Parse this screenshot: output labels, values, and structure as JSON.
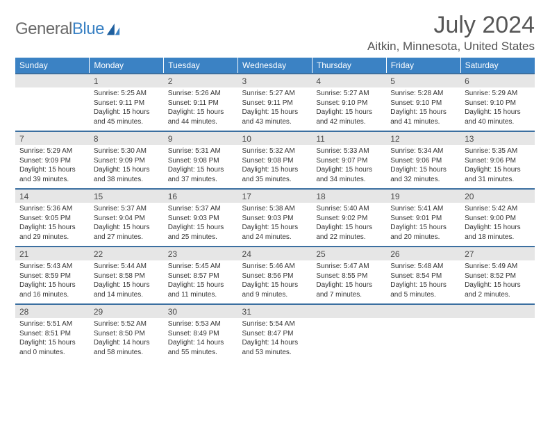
{
  "branding": {
    "logo_text_1": "General",
    "logo_text_2": "Blue",
    "logo_color_gray": "#6a6a6a",
    "logo_color_blue": "#3b82c4"
  },
  "header": {
    "month_title": "July 2024",
    "location": "Aitkin, Minnesota, United States"
  },
  "theme": {
    "header_bg": "#3b82c4",
    "header_text": "#ffffff",
    "daynum_bg": "#e6e6e6",
    "border_color": "#3b6fa0",
    "body_text": "#333333"
  },
  "weekdays": [
    "Sunday",
    "Monday",
    "Tuesday",
    "Wednesday",
    "Thursday",
    "Friday",
    "Saturday"
  ],
  "weeks": [
    [
      null,
      {
        "n": "1",
        "sr": "5:25 AM",
        "ss": "9:11 PM",
        "dl": "15 hours and 45 minutes."
      },
      {
        "n": "2",
        "sr": "5:26 AM",
        "ss": "9:11 PM",
        "dl": "15 hours and 44 minutes."
      },
      {
        "n": "3",
        "sr": "5:27 AM",
        "ss": "9:11 PM",
        "dl": "15 hours and 43 minutes."
      },
      {
        "n": "4",
        "sr": "5:27 AM",
        "ss": "9:10 PM",
        "dl": "15 hours and 42 minutes."
      },
      {
        "n": "5",
        "sr": "5:28 AM",
        "ss": "9:10 PM",
        "dl": "15 hours and 41 minutes."
      },
      {
        "n": "6",
        "sr": "5:29 AM",
        "ss": "9:10 PM",
        "dl": "15 hours and 40 minutes."
      }
    ],
    [
      {
        "n": "7",
        "sr": "5:29 AM",
        "ss": "9:09 PM",
        "dl": "15 hours and 39 minutes."
      },
      {
        "n": "8",
        "sr": "5:30 AM",
        "ss": "9:09 PM",
        "dl": "15 hours and 38 minutes."
      },
      {
        "n": "9",
        "sr": "5:31 AM",
        "ss": "9:08 PM",
        "dl": "15 hours and 37 minutes."
      },
      {
        "n": "10",
        "sr": "5:32 AM",
        "ss": "9:08 PM",
        "dl": "15 hours and 35 minutes."
      },
      {
        "n": "11",
        "sr": "5:33 AM",
        "ss": "9:07 PM",
        "dl": "15 hours and 34 minutes."
      },
      {
        "n": "12",
        "sr": "5:34 AM",
        "ss": "9:06 PM",
        "dl": "15 hours and 32 minutes."
      },
      {
        "n": "13",
        "sr": "5:35 AM",
        "ss": "9:06 PM",
        "dl": "15 hours and 31 minutes."
      }
    ],
    [
      {
        "n": "14",
        "sr": "5:36 AM",
        "ss": "9:05 PM",
        "dl": "15 hours and 29 minutes."
      },
      {
        "n": "15",
        "sr": "5:37 AM",
        "ss": "9:04 PM",
        "dl": "15 hours and 27 minutes."
      },
      {
        "n": "16",
        "sr": "5:37 AM",
        "ss": "9:03 PM",
        "dl": "15 hours and 25 minutes."
      },
      {
        "n": "17",
        "sr": "5:38 AM",
        "ss": "9:03 PM",
        "dl": "15 hours and 24 minutes."
      },
      {
        "n": "18",
        "sr": "5:40 AM",
        "ss": "9:02 PM",
        "dl": "15 hours and 22 minutes."
      },
      {
        "n": "19",
        "sr": "5:41 AM",
        "ss": "9:01 PM",
        "dl": "15 hours and 20 minutes."
      },
      {
        "n": "20",
        "sr": "5:42 AM",
        "ss": "9:00 PM",
        "dl": "15 hours and 18 minutes."
      }
    ],
    [
      {
        "n": "21",
        "sr": "5:43 AM",
        "ss": "8:59 PM",
        "dl": "15 hours and 16 minutes."
      },
      {
        "n": "22",
        "sr": "5:44 AM",
        "ss": "8:58 PM",
        "dl": "15 hours and 14 minutes."
      },
      {
        "n": "23",
        "sr": "5:45 AM",
        "ss": "8:57 PM",
        "dl": "15 hours and 11 minutes."
      },
      {
        "n": "24",
        "sr": "5:46 AM",
        "ss": "8:56 PM",
        "dl": "15 hours and 9 minutes."
      },
      {
        "n": "25",
        "sr": "5:47 AM",
        "ss": "8:55 PM",
        "dl": "15 hours and 7 minutes."
      },
      {
        "n": "26",
        "sr": "5:48 AM",
        "ss": "8:54 PM",
        "dl": "15 hours and 5 minutes."
      },
      {
        "n": "27",
        "sr": "5:49 AM",
        "ss": "8:52 PM",
        "dl": "15 hours and 2 minutes."
      }
    ],
    [
      {
        "n": "28",
        "sr": "5:51 AM",
        "ss": "8:51 PM",
        "dl": "15 hours and 0 minutes."
      },
      {
        "n": "29",
        "sr": "5:52 AM",
        "ss": "8:50 PM",
        "dl": "14 hours and 58 minutes."
      },
      {
        "n": "30",
        "sr": "5:53 AM",
        "ss": "8:49 PM",
        "dl": "14 hours and 55 minutes."
      },
      {
        "n": "31",
        "sr": "5:54 AM",
        "ss": "8:47 PM",
        "dl": "14 hours and 53 minutes."
      },
      null,
      null,
      null
    ]
  ],
  "labels": {
    "sunrise_prefix": "Sunrise: ",
    "sunset_prefix": "Sunset: ",
    "daylight_prefix": "Daylight: "
  }
}
